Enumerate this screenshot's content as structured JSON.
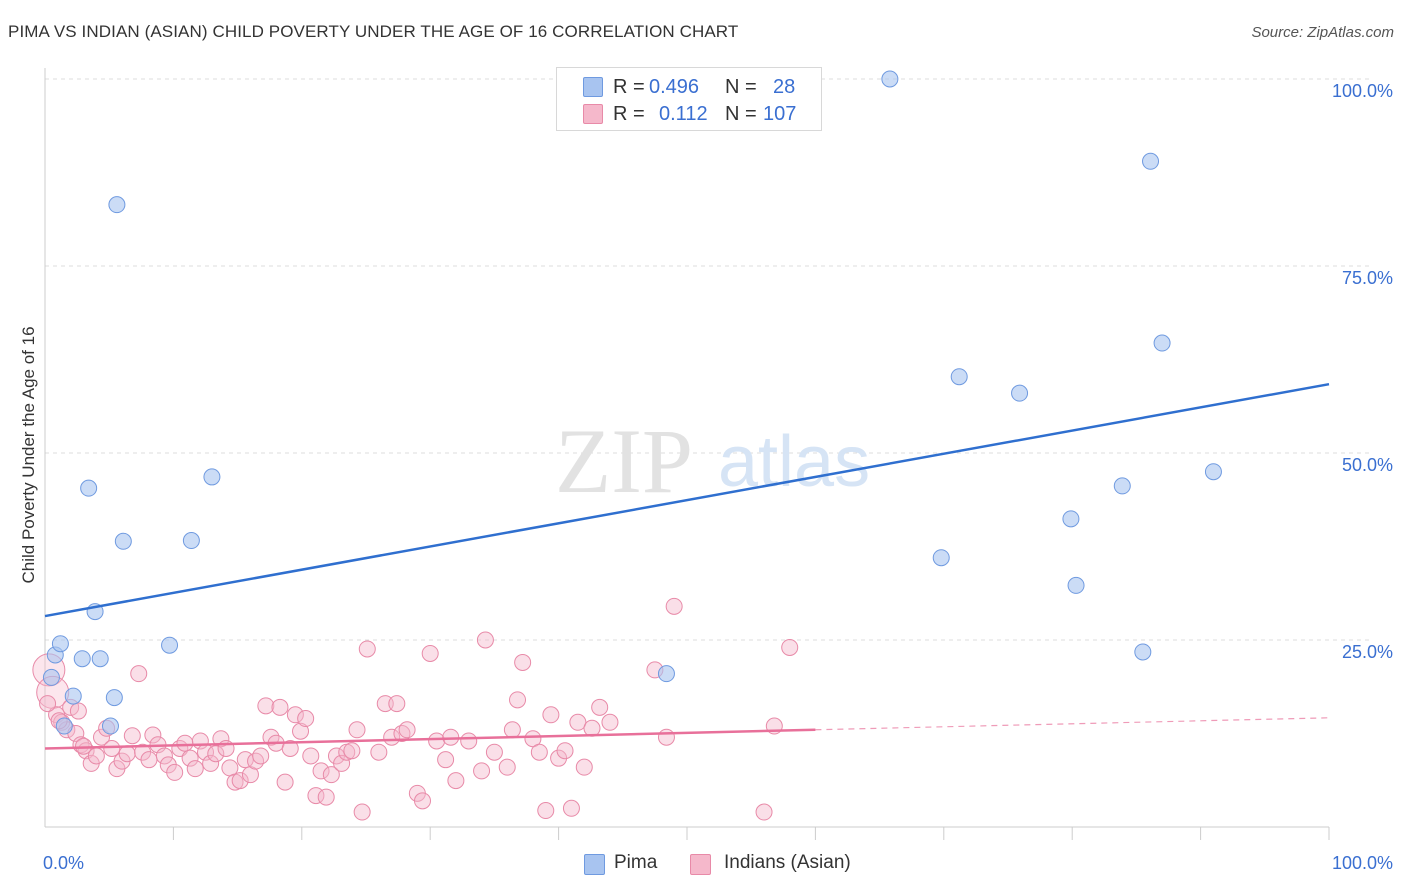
{
  "title": "PIMA VS INDIAN (ASIAN) CHILD POVERTY UNDER THE AGE OF 16 CORRELATION CHART",
  "source": "Source: ZipAtlas.com",
  "watermark": {
    "zip": "ZIP",
    "atlas": "atlas"
  },
  "legend": {
    "r_label": "R =",
    "n_label": "N =",
    "rows": [
      {
        "r": "0.496",
        "n": "28",
        "color": "#a8c4f0"
      },
      {
        "r": "0.112",
        "n": "107",
        "color": "#f5b8cb"
      }
    ]
  },
  "bottom_legend": [
    {
      "label": "Pima",
      "color": "#a8c4f0"
    },
    {
      "label": "Indians (Asian)",
      "color": "#f5b8cb"
    }
  ],
  "colors": {
    "pima_fill": "#a8c4f0",
    "pima_stroke": "#6f9ae0",
    "pima_line": "#2f6fcf",
    "indian_fill": "#f5b8cb",
    "indian_stroke": "#e88aa8",
    "indian_line": "#e8709a",
    "tick_label": "#3a6fd1",
    "grid": "#dddddd"
  },
  "chart_data": {
    "type": "scatter",
    "title": "PIMA VS INDIAN (ASIAN) CHILD POVERTY UNDER THE AGE OF 16 CORRELATION CHART",
    "xlabel": "",
    "ylabel": "Child Poverty Under the Age of 16",
    "xlim": [
      0,
      100
    ],
    "ylim": [
      0,
      100
    ],
    "x_tick_labels": [
      "0.0%",
      "100.0%"
    ],
    "y_tick_labels": [
      "25.0%",
      "50.0%",
      "75.0%",
      "100.0%"
    ],
    "y_ticks": [
      25,
      50,
      75,
      100
    ],
    "grid": true,
    "series": [
      {
        "name": "Pima",
        "points": [
          [
            0.5,
            20.0
          ],
          [
            0.8,
            23.0
          ],
          [
            1.2,
            24.5
          ],
          [
            1.5,
            13.5
          ],
          [
            2.2,
            17.5
          ],
          [
            2.9,
            22.5
          ],
          [
            3.4,
            45.3
          ],
          [
            3.9,
            28.8
          ],
          [
            4.3,
            22.5
          ],
          [
            5.1,
            13.5
          ],
          [
            5.4,
            17.3
          ],
          [
            5.6,
            83.2
          ],
          [
            6.1,
            38.2
          ],
          [
            9.7,
            24.3
          ],
          [
            11.4,
            38.3
          ],
          [
            13.0,
            46.8
          ],
          [
            48.4,
            20.5
          ],
          [
            65.8,
            100.0
          ],
          [
            69.8,
            36.0
          ],
          [
            71.2,
            60.2
          ],
          [
            75.9,
            58.0
          ],
          [
            79.9,
            41.2
          ],
          [
            80.3,
            32.3
          ],
          [
            83.9,
            45.6
          ],
          [
            85.5,
            23.4
          ],
          [
            86.1,
            89.0
          ],
          [
            87.0,
            64.7
          ],
          [
            91.0,
            47.5
          ]
        ]
      },
      {
        "name": "Indians (Asian)",
        "points": [
          [
            0.3,
            21.0
          ],
          [
            0.6,
            18.0
          ],
          [
            0.9,
            15.0
          ],
          [
            1.3,
            14.0
          ],
          [
            1.7,
            13.0
          ],
          [
            2.0,
            16.0
          ],
          [
            2.4,
            12.5
          ],
          [
            2.8,
            11.0
          ],
          [
            3.2,
            10.2
          ],
          [
            3.6,
            8.5
          ],
          [
            4.0,
            9.5
          ],
          [
            4.4,
            12.0
          ],
          [
            4.8,
            13.2
          ],
          [
            5.2,
            10.5
          ],
          [
            5.6,
            7.8
          ],
          [
            6.0,
            8.8
          ],
          [
            6.4,
            9.8
          ],
          [
            6.8,
            12.2
          ],
          [
            7.3,
            20.5
          ],
          [
            7.6,
            10.0
          ],
          [
            8.1,
            9.0
          ],
          [
            8.4,
            12.3
          ],
          [
            8.8,
            11.0
          ],
          [
            9.3,
            9.5
          ],
          [
            9.6,
            8.3
          ],
          [
            10.1,
            7.3
          ],
          [
            10.5,
            10.5
          ],
          [
            10.9,
            11.2
          ],
          [
            11.3,
            9.2
          ],
          [
            11.7,
            7.8
          ],
          [
            12.1,
            11.5
          ],
          [
            12.5,
            10.0
          ],
          [
            12.9,
            8.5
          ],
          [
            13.3,
            9.8
          ],
          [
            13.7,
            11.8
          ],
          [
            14.1,
            10.5
          ],
          [
            14.4,
            7.9
          ],
          [
            14.8,
            6.0
          ],
          [
            15.2,
            6.2
          ],
          [
            15.6,
            9.0
          ],
          [
            16.0,
            7.0
          ],
          [
            16.4,
            8.8
          ],
          [
            16.8,
            9.5
          ],
          [
            17.2,
            16.2
          ],
          [
            17.6,
            12.0
          ],
          [
            18.0,
            11.2
          ],
          [
            18.3,
            16.0
          ],
          [
            18.7,
            6.0
          ],
          [
            19.1,
            10.5
          ],
          [
            19.5,
            15.0
          ],
          [
            19.9,
            12.8
          ],
          [
            20.3,
            14.5
          ],
          [
            20.7,
            9.5
          ],
          [
            21.1,
            4.2
          ],
          [
            21.5,
            7.5
          ],
          [
            21.9,
            4.0
          ],
          [
            22.3,
            7.0
          ],
          [
            22.7,
            9.5
          ],
          [
            23.1,
            8.5
          ],
          [
            23.5,
            10.0
          ],
          [
            23.9,
            10.2
          ],
          [
            24.3,
            13.0
          ],
          [
            24.7,
            2.0
          ],
          [
            25.1,
            23.8
          ],
          [
            26.0,
            10.0
          ],
          [
            26.5,
            16.5
          ],
          [
            27.0,
            12.0
          ],
          [
            27.4,
            16.5
          ],
          [
            27.8,
            12.5
          ],
          [
            28.2,
            13.0
          ],
          [
            29.0,
            4.5
          ],
          [
            29.4,
            3.5
          ],
          [
            30.0,
            23.2
          ],
          [
            30.5,
            11.5
          ],
          [
            31.2,
            9.0
          ],
          [
            31.6,
            12.0
          ],
          [
            32.0,
            6.2
          ],
          [
            33.0,
            11.5
          ],
          [
            34.0,
            7.5
          ],
          [
            34.3,
            25.0
          ],
          [
            35.0,
            10.0
          ],
          [
            36.0,
            8.0
          ],
          [
            36.4,
            13.0
          ],
          [
            36.8,
            17.0
          ],
          [
            37.2,
            22.0
          ],
          [
            38.0,
            11.8
          ],
          [
            38.5,
            10.0
          ],
          [
            39.0,
            2.2
          ],
          [
            39.4,
            15.0
          ],
          [
            40.0,
            9.2
          ],
          [
            40.5,
            10.2
          ],
          [
            41.0,
            2.5
          ],
          [
            41.5,
            14.0
          ],
          [
            42.0,
            8.0
          ],
          [
            42.6,
            13.2
          ],
          [
            43.2,
            16.0
          ],
          [
            44.0,
            14.0
          ],
          [
            47.5,
            21.0
          ],
          [
            48.4,
            12.0
          ],
          [
            49.0,
            29.5
          ],
          [
            56.0,
            2.0
          ],
          [
            56.8,
            13.5
          ],
          [
            58.0,
            24.0
          ],
          [
            0.2,
            16.5
          ],
          [
            1.1,
            14.2
          ],
          [
            2.6,
            15.5
          ],
          [
            3.0,
            10.8
          ]
        ]
      }
    ],
    "trendlines": [
      {
        "series": "Pima",
        "x": [
          0,
          100
        ],
        "y": [
          28.2,
          59.2
        ]
      },
      {
        "series": "Indians (Asian)",
        "x": [
          0,
          60
        ],
        "y": [
          10.5,
          13.0
        ],
        "dashed_extension": {
          "x": [
            60,
            100
          ],
          "y": [
            13.0,
            14.6
          ]
        }
      }
    ]
  }
}
